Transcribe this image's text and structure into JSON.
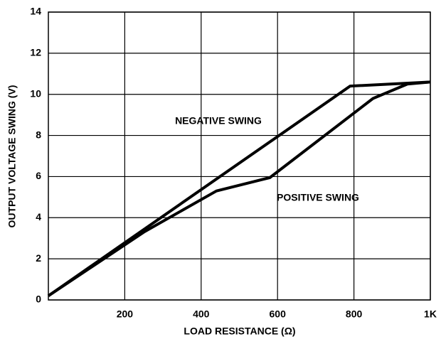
{
  "chart_data": {
    "type": "line",
    "xlabel": "LOAD RESISTANCE (Ω)",
    "ylabel": "OUTPUT VOLTAGE SWING (V)",
    "xlim": [
      0,
      1000
    ],
    "xticks": [
      200,
      400,
      600,
      800,
      {
        "value": 1000,
        "label": "1K"
      }
    ],
    "ylim": [
      0,
      14
    ],
    "yticks": [
      0,
      2,
      4,
      6,
      8,
      10,
      12,
      14
    ],
    "grid": true,
    "series": [
      {
        "name": "NEGATIVE SWING",
        "color": "#000000",
        "x": [
          0,
          790,
          1000
        ],
        "values": [
          0.2,
          10.4,
          10.6
        ]
      },
      {
        "name": "POSITIVE SWING",
        "color": "#000000",
        "x": [
          0,
          250,
          440,
          580,
          850,
          940,
          1000
        ],
        "values": [
          0.2,
          3.3,
          5.3,
          5.95,
          9.8,
          10.5,
          10.6
        ]
      }
    ]
  }
}
